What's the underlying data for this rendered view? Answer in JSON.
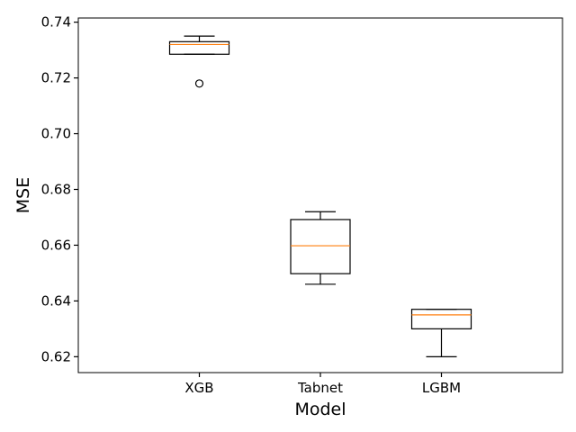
{
  "chart_data": {
    "type": "box",
    "title": "",
    "xlabel": "Model",
    "ylabel": "MSE",
    "ylim": [
      0.6143,
      0.7415
    ],
    "yticks": [
      0.62,
      0.64,
      0.66,
      0.68,
      0.7,
      0.72,
      0.74
    ],
    "ytick_labels": [
      "0.62",
      "0.64",
      "0.66",
      "0.68",
      "0.70",
      "0.72",
      "0.74"
    ],
    "categories": [
      "XGB",
      "Tabnet",
      "LGBM"
    ],
    "grid": false,
    "colors": {
      "box": "#000000",
      "median": "#ff7f0e"
    },
    "boxes": [
      {
        "name": "XGB",
        "whisker_low": 0.7285,
        "q1": 0.7285,
        "median": 0.732,
        "q3": 0.733,
        "whisker_high": 0.735,
        "outliers": [
          0.718
        ]
      },
      {
        "name": "Tabnet",
        "whisker_low": 0.646,
        "q1": 0.6498,
        "median": 0.6598,
        "q3": 0.6692,
        "whisker_high": 0.672,
        "outliers": []
      },
      {
        "name": "LGBM",
        "whisker_low": 0.62,
        "q1": 0.63,
        "median": 0.635,
        "q3": 0.637,
        "whisker_high": 0.637,
        "outliers": []
      }
    ]
  }
}
